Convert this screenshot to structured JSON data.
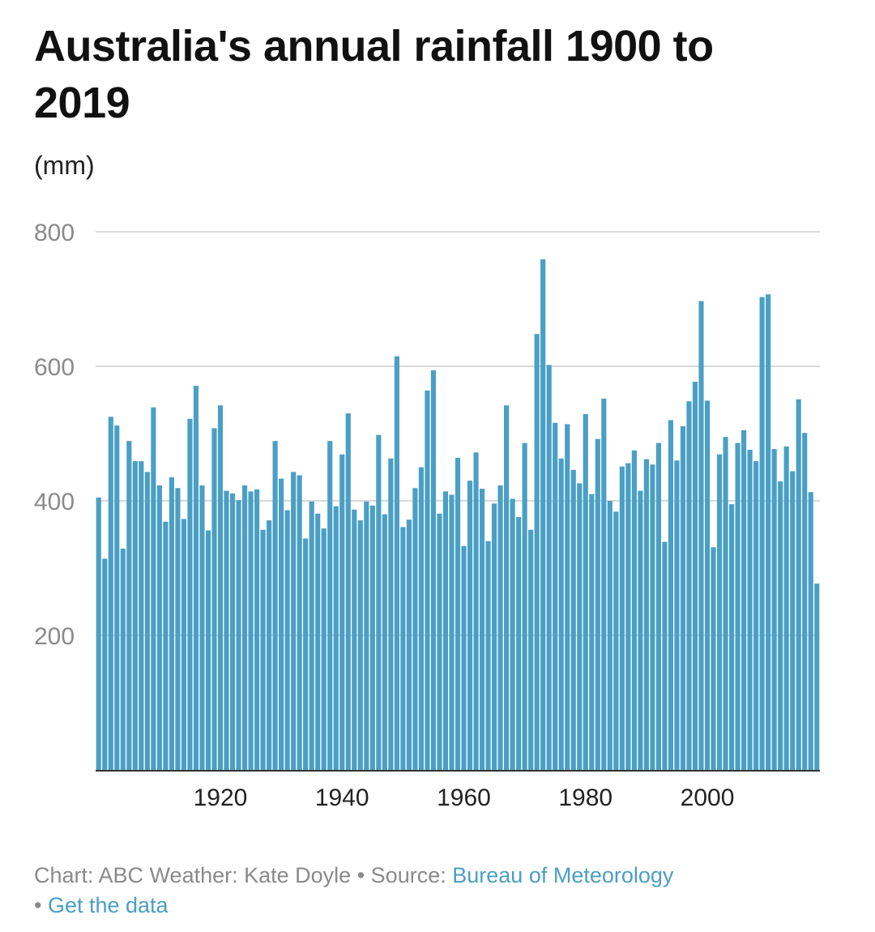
{
  "header": {
    "title": "Australia's annual rainfall 1900 to 2019",
    "unit": "(mm)"
  },
  "footer": {
    "chart_credit": "Chart: ABC Weather: Kate Doyle",
    "separator": "•",
    "source_label": "Source:",
    "source_link": "Bureau of Meteorology",
    "data_link": "Get the data"
  },
  "colors": {
    "bar": "#4a9fc4",
    "highlight": "#c0392b",
    "grid": "#d9d9d9",
    "axis": "#333333",
    "tick_text": "#8a8a8a"
  },
  "chart_data": {
    "type": "bar",
    "title": "Australia's annual rainfall 1900 to 2019",
    "ylabel": "(mm)",
    "xlabel": "",
    "ylim": [
      0,
      800
    ],
    "yticks": [
      200,
      400,
      600,
      800
    ],
    "xticks": [
      1920,
      1940,
      1960,
      1980,
      2000
    ],
    "grid": true,
    "x_start": 1900,
    "x_end": 2019,
    "highlight_year": 2019,
    "values": [
      405,
      314,
      525,
      512,
      329,
      489,
      459,
      459,
      443,
      539,
      423,
      369,
      435,
      419,
      373,
      522,
      571,
      423,
      356,
      508,
      542,
      415,
      411,
      401,
      423,
      414,
      417,
      357,
      371,
      489,
      433,
      386,
      443,
      438,
      344,
      399,
      381,
      359,
      489,
      392,
      469,
      530,
      387,
      371,
      399,
      393,
      498,
      380,
      463,
      615,
      361,
      372,
      419,
      450,
      564,
      594,
      381,
      414,
      409,
      464,
      333,
      430,
      472,
      418,
      340,
      396,
      423,
      542,
      403,
      376,
      486,
      357,
      648,
      759,
      602,
      516,
      463,
      514,
      446,
      426,
      529,
      410,
      492,
      552,
      400,
      384,
      451,
      456,
      475,
      415,
      462,
      454,
      486,
      339,
      520,
      460,
      511,
      548,
      577,
      697,
      549,
      331,
      469,
      495,
      395,
      486,
      505,
      476,
      459,
      703,
      707,
      477,
      429,
      481,
      444,
      551,
      501,
      413,
      277
    ]
  }
}
